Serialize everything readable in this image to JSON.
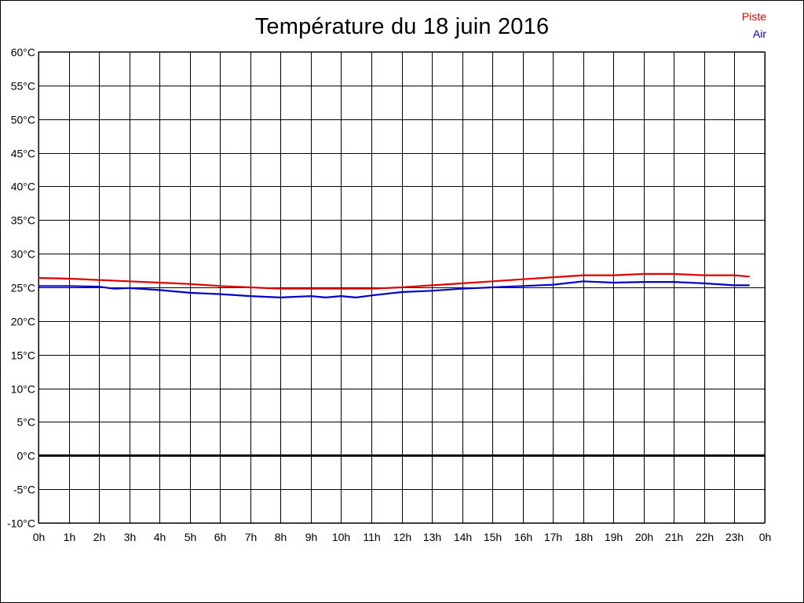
{
  "chart_data": {
    "type": "line",
    "title": "Température du 18 juin 2016",
    "xlabel": "",
    "ylabel": "",
    "grid": true,
    "legend_position": "top-right",
    "ylim": [
      -10,
      60
    ],
    "xlim": [
      0,
      24
    ],
    "y_ticks": [
      "60°C",
      "55°C",
      "50°C",
      "45°C",
      "40°C",
      "35°C",
      "30°C",
      "25°C",
      "20°C",
      "15°C",
      "10°C",
      "5°C",
      "0°C",
      "-5°C",
      "-10°C"
    ],
    "x_ticks": [
      "0h",
      "1h",
      "2h",
      "3h",
      "4h",
      "5h",
      "6h",
      "7h",
      "8h",
      "9h",
      "10h",
      "11h",
      "12h",
      "13h",
      "14h",
      "15h",
      "16h",
      "17h",
      "18h",
      "19h",
      "20h",
      "21h",
      "22h",
      "23h",
      "0h"
    ],
    "series": [
      {
        "name": "Piste",
        "color": "#e00000",
        "x": [
          0,
          1,
          2,
          3,
          4,
          5,
          6,
          7,
          8,
          9,
          10,
          11,
          12,
          13,
          14,
          15,
          16,
          17,
          18,
          19,
          20,
          21,
          22,
          23,
          23.5
        ],
        "y": [
          26.4,
          26.3,
          26.1,
          25.9,
          25.7,
          25.5,
          25.2,
          25.0,
          24.8,
          24.8,
          24.8,
          24.8,
          25.0,
          25.3,
          25.6,
          25.9,
          26.2,
          26.5,
          26.8,
          26.8,
          27.0,
          27.0,
          26.8,
          26.8,
          26.6
        ]
      },
      {
        "name": "Air",
        "color": "#0000cc",
        "x": [
          0,
          1,
          2,
          2.5,
          3,
          4,
          5,
          6,
          7,
          8,
          9,
          9.5,
          10,
          10.5,
          11,
          12,
          13,
          14,
          15,
          16,
          17,
          18,
          19,
          20,
          21,
          22,
          23,
          23.5
        ],
        "y": [
          25.2,
          25.2,
          25.1,
          24.8,
          24.9,
          24.6,
          24.2,
          24.0,
          23.7,
          23.5,
          23.7,
          23.5,
          23.7,
          23.5,
          23.8,
          24.3,
          24.5,
          24.8,
          25.0,
          25.2,
          25.4,
          25.9,
          25.7,
          25.8,
          25.8,
          25.6,
          25.3,
          25.3
        ]
      }
    ],
    "reference_line_y": 0
  }
}
